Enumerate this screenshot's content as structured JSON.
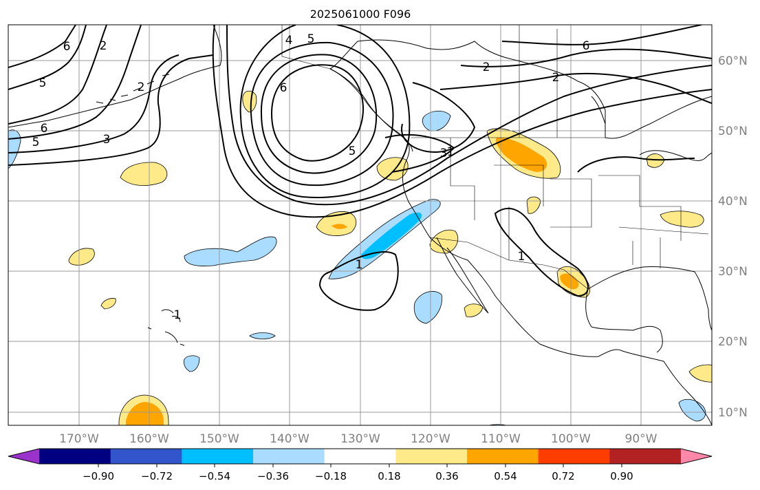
{
  "title": "2025061000 F096",
  "lon_labels": [
    "170°W",
    "160°W",
    "150°W",
    "140°W",
    "130°W",
    "120°W",
    "110°W",
    "100°W",
    "90°W"
  ],
  "lat_labels": [
    "60°N",
    "50°N",
    "40°N",
    "30°N",
    "20°N",
    "10°N"
  ],
  "colorbar": {
    "tick_labels": [
      "−0.90",
      "−0.72",
      "−0.54",
      "−0.36",
      "−0.18",
      "0.18",
      "0.36",
      "0.54",
      "0.72",
      "0.90"
    ],
    "colors": [
      "#9933cc",
      "#000080",
      "#3355cc",
      "#00bfff",
      "#aadcff",
      "#ffffff",
      "#ffea8a",
      "#ffa500",
      "#ff3d00",
      "#b22222",
      "#ff88aa"
    ]
  },
  "contour_labels": [
    "6",
    "2",
    "5",
    "4",
    "5",
    "5",
    "3",
    "6",
    "5",
    "6",
    "2",
    "3",
    "1",
    "1",
    "2",
    "6",
    "2",
    "1",
    "1"
  ],
  "colors": {
    "grid": "#999999",
    "lat_lon_label": "#808080",
    "contour": "#000000",
    "coastline": "#000000"
  }
}
